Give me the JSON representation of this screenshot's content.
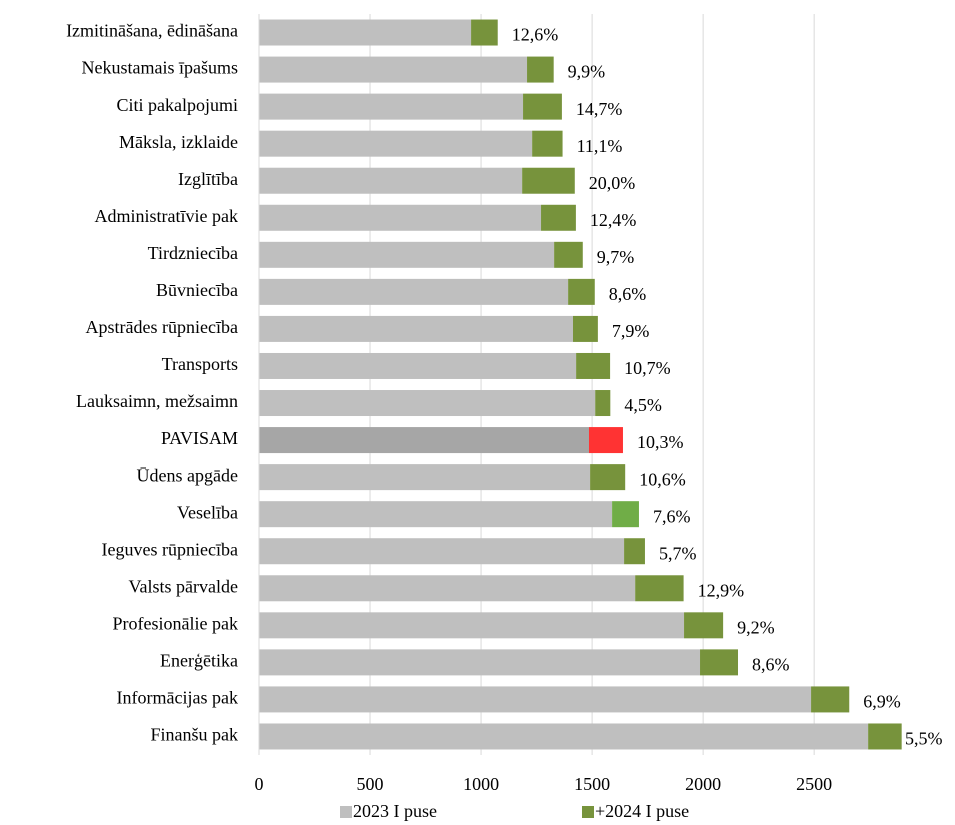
{
  "chart_data": {
    "type": "stacked-barh",
    "categories": [
      "Izmitināšana, ēdināšana",
      "Nekustamais īpašums",
      "Citi pakalpojumi",
      "Māksla, izklaide",
      "Izglītība",
      "Administratīvie pak",
      "Tirdzniecība",
      "Būvniecība",
      "Apstrādes rūpniecība",
      "Transports",
      "Lauksaimn, mežsaimn",
      "PAVISAM",
      "Ūdens apgāde",
      "Veselība",
      "Ieguves rūpniecība",
      "Valsts pārvalde",
      "Profesionālie pak",
      "Enerģētika",
      "Informācijas pak",
      "Finanšu pak"
    ],
    "series": [
      {
        "name": "2023 I puse",
        "color": "#bfbfbf",
        "colors": [
          "#bfbfbf",
          "#bfbfbf",
          "#bfbfbf",
          "#bfbfbf",
          "#bfbfbf",
          "#bfbfbf",
          "#bfbfbf",
          "#bfbfbf",
          "#bfbfbf",
          "#bfbfbf",
          "#bfbfbf",
          "#a6a6a6",
          "#bfbfbf",
          "#bfbfbf",
          "#bfbfbf",
          "#bfbfbf",
          "#bfbfbf",
          "#bfbfbf",
          "#bfbfbf",
          "#bfbfbf"
        ],
        "values": [
          955,
          1207,
          1189,
          1230,
          1185,
          1270,
          1329,
          1392,
          1414,
          1428,
          1514,
          1486,
          1491,
          1590,
          1644,
          1694,
          1914,
          1986,
          2486,
          2743
        ]
      },
      {
        "name": "+2024 I puse",
        "color": "#77933c",
        "colors": [
          "#77933c",
          "#77933c",
          "#77933c",
          "#77933c",
          "#77933c",
          "#77933c",
          "#77933c",
          "#77933c",
          "#77933c",
          "#77933c",
          "#77933c",
          "#ff3333",
          "#77933c",
          "#70ad47",
          "#77933c",
          "#77933c",
          "#77933c",
          "#77933c",
          "#77933c",
          "#77933c"
        ],
        "values": [
          120,
          120,
          175,
          137,
          237,
          157,
          129,
          120,
          112,
          153,
          68,
          153,
          158,
          121,
          94,
          218,
          176,
          171,
          172,
          151
        ],
        "pct_change": [
          12.6,
          9.9,
          14.7,
          11.1,
          20.0,
          12.4,
          9.7,
          8.6,
          7.9,
          10.7,
          4.5,
          10.3,
          10.6,
          7.6,
          5.7,
          12.9,
          9.2,
          8.6,
          6.9,
          5.5
        ],
        "pct_change_labels": [
          "12,6%",
          "9,9%",
          "14,7%",
          "11,1%",
          "20,0%",
          "12,4%",
          "9,7%",
          "8,6%",
          "7,9%",
          "10,7%",
          "4,5%",
          "10,3%",
          "10,6%",
          "7,6%",
          "5,7%",
          "12,9%",
          "9,2%",
          "8,6%",
          "6,9%",
          "5,5%"
        ]
      }
    ],
    "xlim": [
      0,
      2900
    ],
    "xticks": [
      0,
      500,
      1000,
      1500,
      2000,
      2500
    ],
    "grid": true,
    "legend": "bottom"
  }
}
